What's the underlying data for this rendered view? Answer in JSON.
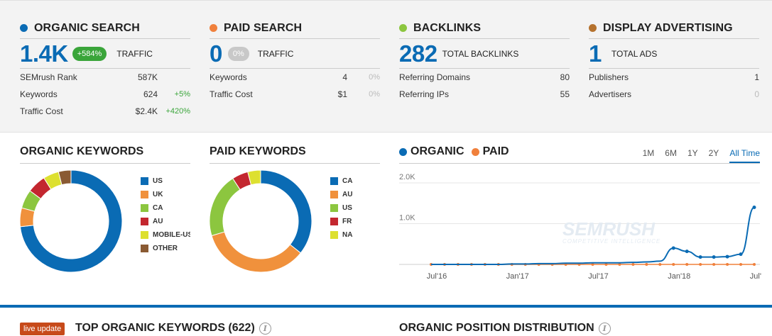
{
  "summary": {
    "organic": {
      "title": "ORGANIC SEARCH",
      "color": "#0a6bb4",
      "big": "1.4K",
      "pill": "+584%",
      "pill_color": "#3aa53a",
      "biglabel": "TRAFFIC",
      "rows": [
        {
          "label": "SEMrush Rank",
          "value": "587K",
          "change": ""
        },
        {
          "label": "Keywords",
          "value": "624",
          "change": "+5%"
        },
        {
          "label": "Traffic Cost",
          "value": "$2.4K",
          "change": "+420%"
        }
      ]
    },
    "paid": {
      "title": "PAID SEARCH",
      "color": "#f0803c",
      "big": "0",
      "pill": "0%",
      "pill_color": "#c8c8c8",
      "biglabel": "TRAFFIC",
      "rows": [
        {
          "label": "Keywords",
          "value": "4",
          "change": "0%"
        },
        {
          "label": "Traffic Cost",
          "value": "$1",
          "change": "0%"
        }
      ]
    },
    "backlinks": {
      "title": "BACKLINKS",
      "color": "#8cc63f",
      "big": "282",
      "biglabel": "TOTAL BACKLINKS",
      "rows": [
        {
          "label": "Referring Domains",
          "value": "80",
          "change": ""
        },
        {
          "label": "Referring IPs",
          "value": "55",
          "change": ""
        }
      ]
    },
    "display": {
      "title": "DISPLAY ADVERTISING",
      "color": "#b5722e",
      "big": "1",
      "biglabel": "TOTAL ADS",
      "rows": [
        {
          "label": "Publishers",
          "value": "1",
          "change": ""
        },
        {
          "label": "Advertisers",
          "value": "0",
          "change": ""
        }
      ]
    }
  },
  "organic_keywords": {
    "title": "ORGANIC KEYWORDS",
    "legend": [
      {
        "label": "US",
        "color": "#0a6bb4"
      },
      {
        "label": "UK",
        "color": "#f0913c"
      },
      {
        "label": "CA",
        "color": "#8cc63f"
      },
      {
        "label": "AU",
        "color": "#c3272f"
      },
      {
        "label": "MOBILE-US",
        "color": "#dde030"
      },
      {
        "label": "OTHER",
        "color": "#8a5a33"
      }
    ]
  },
  "paid_keywords": {
    "title": "PAID KEYWORDS",
    "legend": [
      {
        "label": "CA",
        "color": "#0a6bb4"
      },
      {
        "label": "AU",
        "color": "#f0913c"
      },
      {
        "label": "US",
        "color": "#8cc63f"
      },
      {
        "label": "FR",
        "color": "#c3272f"
      },
      {
        "label": "NA",
        "color": "#dde030"
      }
    ]
  },
  "trend": {
    "legend_organic": "ORGANIC",
    "legend_paid": "PAID",
    "organic_color": "#0a6bb4",
    "paid_color": "#f0803c",
    "ranges": [
      "1M",
      "6M",
      "1Y",
      "2Y",
      "All Time"
    ],
    "active_range": "All Time"
  },
  "bottom": {
    "badge": "live update",
    "top_keywords": "TOP ORGANIC KEYWORDS (622)",
    "position_dist": "ORGANIC POSITION DISTRIBUTION",
    "info_glyph": "i"
  },
  "chart_data": [
    {
      "type": "pie",
      "title": "ORGANIC KEYWORDS",
      "categories": [
        "US",
        "UK",
        "CA",
        "AU",
        "MOBILE-US",
        "OTHER"
      ],
      "values": [
        74,
        6,
        6,
        6,
        5,
        4
      ],
      "donut": true
    },
    {
      "type": "pie",
      "title": "PAID KEYWORDS",
      "categories": [
        "CA",
        "AU",
        "US",
        "FR",
        "NA"
      ],
      "values": [
        35,
        34,
        20,
        5,
        4
      ],
      "donut": true
    },
    {
      "type": "line",
      "x": [
        "Jul'16",
        "Aug'16",
        "Sep'16",
        "Oct'16",
        "Nov'16",
        "Dec'16",
        "Jan'17",
        "Feb'17",
        "Mar'17",
        "Apr'17",
        "May'17",
        "Jun'17",
        "Jul'17",
        "Aug'17",
        "Sep'17",
        "Oct'17",
        "Nov'17",
        "Dec'17",
        "Jan'18",
        "Feb'18",
        "Mar'18",
        "Apr'18",
        "May'18",
        "Jun'18",
        "Jul'18"
      ],
      "series": [
        {
          "name": "ORGANIC",
          "values": [
            0,
            0,
            0,
            0,
            0,
            0,
            10,
            10,
            20,
            20,
            30,
            30,
            40,
            40,
            40,
            50,
            60,
            80,
            400,
            320,
            180,
            180,
            190,
            250,
            1400
          ]
        },
        {
          "name": "PAID",
          "values": [
            0,
            0,
            0,
            0,
            0,
            0,
            0,
            0,
            0,
            0,
            0,
            0,
            0,
            0,
            0,
            0,
            0,
            0,
            0,
            0,
            0,
            0,
            0,
            0,
            0
          ]
        }
      ],
      "x_ticks": [
        "Jul'16",
        "Jan'17",
        "Jul'17",
        "Jan'18",
        "Jul'18"
      ],
      "y_ticks": [
        "1.0K",
        "2.0K"
      ],
      "ylim": [
        0,
        2000
      ],
      "watermark": "SEMRUSH",
      "watermark_sub": "COMPETITIVE INTELLIGENCE",
      "grid": true
    }
  ]
}
